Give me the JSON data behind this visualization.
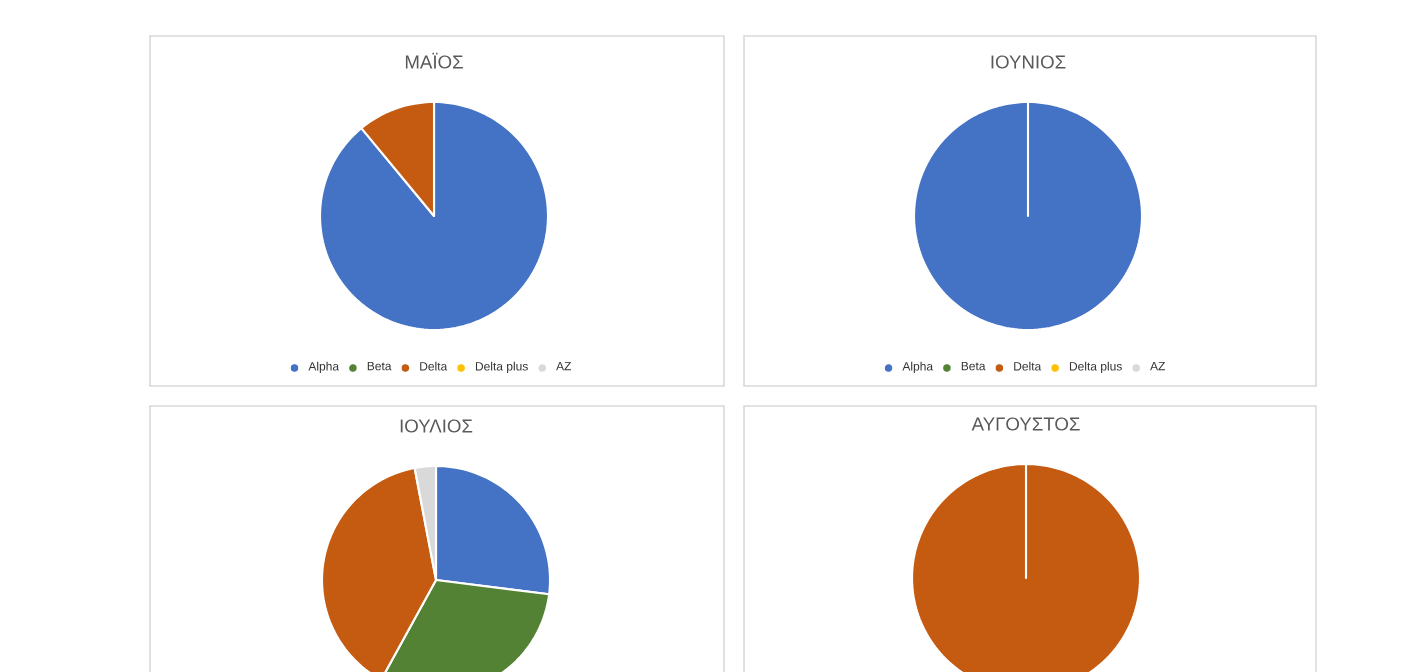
{
  "chart_data": [
    {
      "type": "pie",
      "title": "ΜΑΪΟΣ",
      "categories": [
        "Alpha",
        "Beta",
        "Delta",
        "Delta plus",
        "AZ"
      ],
      "values": [
        89,
        0,
        11,
        0,
        0
      ],
      "colors": [
        "#4472c4",
        "#548235",
        "#c55a11",
        "#ffc000",
        "#d9d9d9"
      ],
      "legend": "bottom"
    },
    {
      "type": "pie",
      "title": "ΙΟΥΝΙΟΣ",
      "categories": [
        "Alpha",
        "Beta",
        "Delta",
        "Delta plus",
        "AZ"
      ],
      "values": [
        100,
        0,
        0,
        0,
        0
      ],
      "colors": [
        "#4472c4",
        "#548235",
        "#c55a11",
        "#ffc000",
        "#d9d9d9"
      ],
      "legend": "bottom"
    },
    {
      "type": "pie",
      "title": "ΙΟΥΛΙΟΣ",
      "categories": [
        null,
        null,
        null,
        null,
        null
      ],
      "values": [
        27,
        31,
        39,
        0,
        3
      ],
      "colors": [
        "#4472c4",
        "#548235",
        "#c55a11",
        "#ffc000",
        "#d9d9d9"
      ]
    },
    {
      "type": "pie",
      "title": "ΑΥΓΟΥΣΤΟΣ",
      "categories": [
        null,
        null,
        null,
        null,
        null
      ],
      "values": [
        0,
        0,
        100,
        0,
        0
      ],
      "colors": [
        "#4472c4",
        "#548235",
        "#c55a11",
        "#ffc000",
        "#d9d9d9"
      ]
    }
  ]
}
